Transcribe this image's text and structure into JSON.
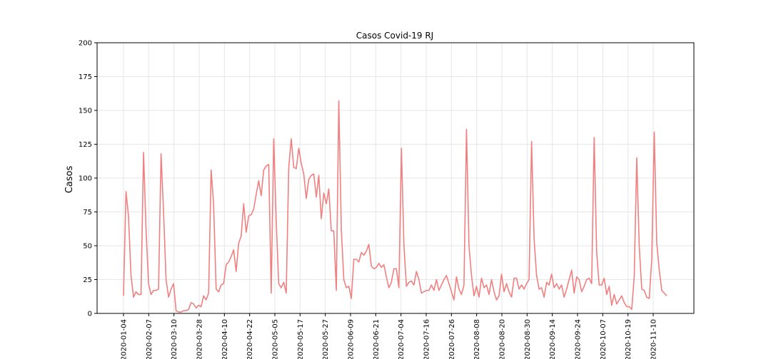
{
  "chart_data": {
    "type": "line",
    "title": "Casos Covid-19 RJ",
    "xlabel": "",
    "ylabel": "Casos",
    "ylim": [
      0,
      200
    ],
    "yticks": [
      0,
      25,
      50,
      75,
      100,
      125,
      150,
      175,
      200
    ],
    "xticks": [
      "2020-01-04",
      "2020-02-07",
      "2020-03-10",
      "2020-03-28",
      "2020-04-10",
      "2020-04-22",
      "2020-05-05",
      "2020-05-17",
      "2020-05-27",
      "2020-06-09",
      "2020-06-21",
      "2020-07-04",
      "2020-07-16",
      "2020-07-26",
      "2020-08-08",
      "2020-08-20",
      "2020-08-30",
      "2020-09-14",
      "2020-09-24",
      "2020-10-07",
      "2020-10-19",
      "2020-11-10"
    ],
    "grid": true,
    "series_color": "#f08080",
    "series": [
      {
        "values": [
          13,
          90,
          72,
          28,
          12,
          16,
          14,
          14,
          119,
          62,
          22,
          14,
          17,
          17,
          18,
          118,
          75,
          25,
          12,
          18,
          22,
          2,
          1,
          1,
          2,
          2,
          3,
          8,
          7,
          4,
          6,
          5,
          13,
          10,
          15,
          106,
          80,
          18,
          16,
          21,
          22,
          36,
          38,
          42,
          47,
          31,
          52,
          57,
          81,
          60,
          72,
          73,
          77,
          88,
          98,
          87,
          106,
          109,
          110,
          15,
          129,
          68,
          22,
          19,
          23,
          15,
          108,
          129,
          108,
          107,
          122,
          111,
          103,
          85,
          99,
          102,
          103,
          86,
          102,
          70,
          89,
          81,
          92,
          61,
          61,
          17,
          157,
          62,
          25,
          19,
          20,
          11,
          40,
          40,
          38,
          45,
          43,
          46,
          51,
          35,
          33,
          34,
          37,
          34,
          36,
          27,
          19,
          23,
          33,
          33,
          19,
          122,
          51,
          20,
          23,
          24,
          21,
          31,
          25,
          15,
          16,
          17,
          17,
          21,
          17,
          25,
          17,
          21,
          25,
          28,
          22,
          16,
          10,
          27,
          18,
          14,
          21,
          136,
          50,
          28,
          13,
          20,
          12,
          26,
          19,
          21,
          14,
          25,
          16,
          10,
          13,
          29,
          16,
          22,
          16,
          12,
          26,
          26,
          18,
          21,
          18,
          22,
          25,
          127,
          55,
          28,
          18,
          19,
          12,
          23,
          21,
          29,
          19,
          22,
          18,
          21,
          12,
          18,
          25,
          32,
          15,
          27,
          25,
          16,
          20,
          25,
          26,
          22,
          130,
          45,
          21,
          21,
          26,
          14,
          20,
          6,
          14,
          7,
          10,
          13,
          8,
          5,
          5,
          3,
          27,
          115,
          50,
          18,
          17,
          12,
          11,
          40,
          134,
          52,
          32,
          17,
          15,
          13
        ]
      }
    ]
  }
}
